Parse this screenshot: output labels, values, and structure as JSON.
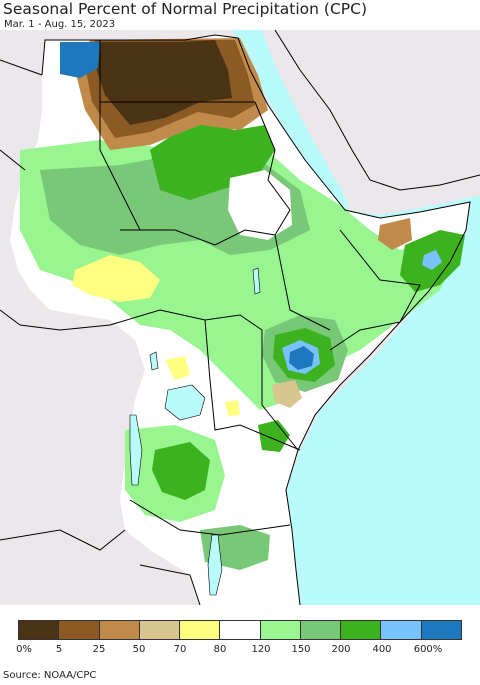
{
  "header": {
    "title": "Seasonal Percent of Normal Precipitation (CPC)",
    "subtitle": "Mar. 1 - Aug. 15, 2023"
  },
  "legend": {
    "colors": [
      "#4a3415",
      "#8c5a24",
      "#c08a4a",
      "#d9c590",
      "#ffff80",
      "#ffffff",
      "#98f590",
      "#78c878",
      "#3cb21e",
      "#78c3ff",
      "#1e78be"
    ],
    "labels": [
      "0%",
      "5",
      "25",
      "50",
      "70",
      "80",
      "120",
      "150",
      "200",
      "400",
      "600%"
    ]
  },
  "footer": {
    "source": "Source: NOAA/CPC"
  },
  "map_colors": {
    "land": "#ffffff",
    "ocean": "#b9fafa",
    "outside": "#ebe7eb",
    "border": "#000000"
  }
}
